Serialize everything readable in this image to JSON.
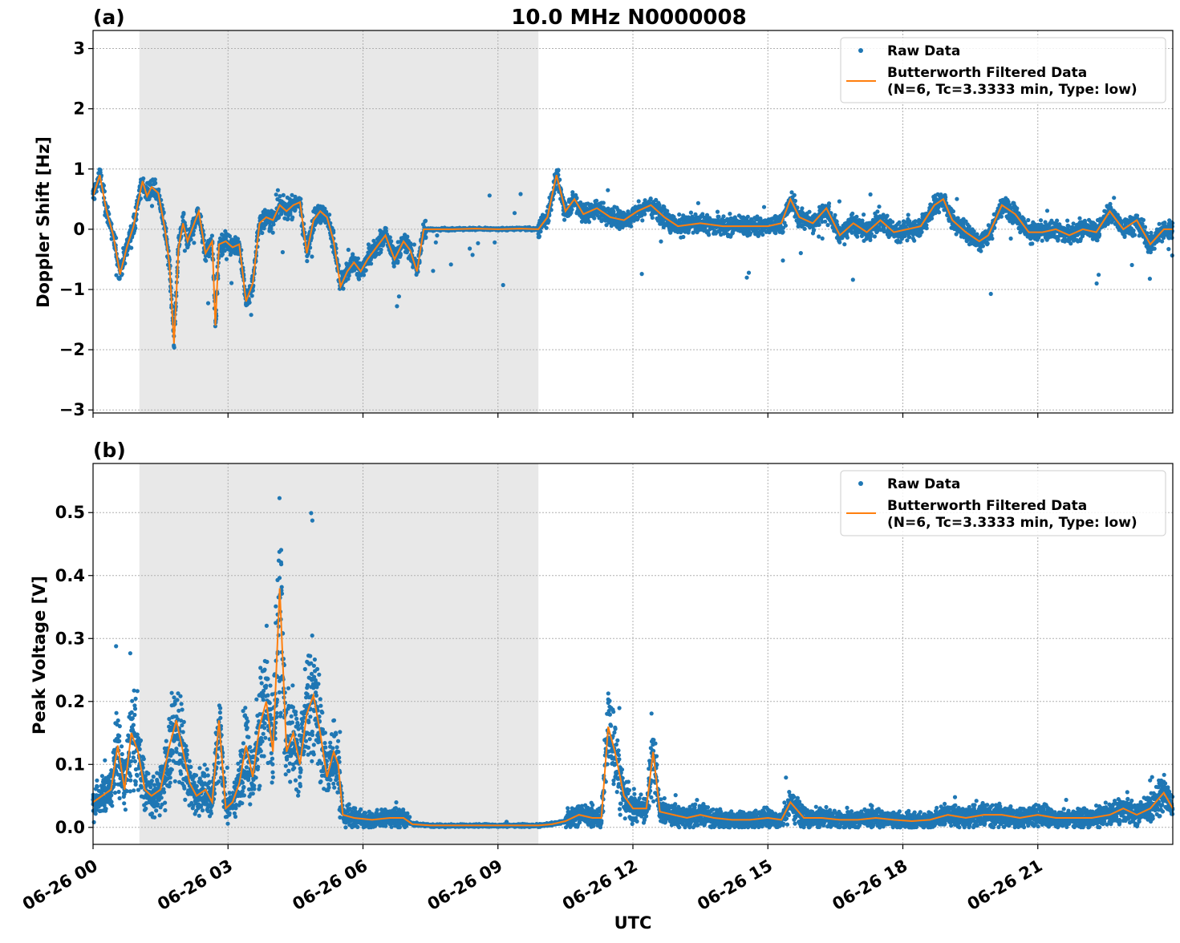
{
  "figure": {
    "title": "10.0 MHz N0000008",
    "xlabel": "UTC",
    "colors": {
      "raw": "#1f77b4",
      "filtered": "#ff7f0e",
      "shade": "#e8e8e8",
      "grid": "#b0b0b0"
    }
  },
  "chart_data": [
    {
      "type": "scatter",
      "panel_label": "(a)",
      "ylabel": "Doppler Shift [Hz]",
      "ylim": [
        -3.05,
        3.3
      ],
      "yticks": [
        -3,
        -2,
        -1,
        0,
        1,
        2,
        3
      ],
      "ytick_labels": [
        "−3",
        "−2",
        "−1",
        "0",
        "1",
        "2",
        "3"
      ],
      "xlim_hours": [
        0,
        24
      ],
      "shaded_region_hours": [
        1.03,
        9.9
      ],
      "grid": true,
      "legend_position": "top-right",
      "legend": [
        "Raw Data",
        "Butterworth Filtered Data",
        "(N=6, Tc=3.3333 min, Type: low)"
      ],
      "series": [
        {
          "name": "Butterworth Filtered Data (N=6, Tc=3.3333 min, Type: low)",
          "hours": [
            0,
            0.15,
            0.3,
            0.45,
            0.6,
            0.75,
            0.9,
            1.0,
            1.1,
            1.2,
            1.3,
            1.45,
            1.6,
            1.7,
            1.8,
            1.9,
            2.0,
            2.1,
            2.2,
            2.35,
            2.5,
            2.65,
            2.72,
            2.8,
            2.95,
            3.1,
            3.25,
            3.4,
            3.55,
            3.7,
            3.85,
            4.0,
            4.15,
            4.3,
            4.45,
            4.6,
            4.75,
            4.9,
            5.05,
            5.2,
            5.35,
            5.5,
            5.65,
            5.8,
            5.95,
            6.1,
            6.3,
            6.5,
            6.7,
            6.9,
            7.05,
            7.2,
            7.35,
            7.5,
            8.0,
            8.5,
            9.0,
            9.5,
            9.9,
            10.1,
            10.3,
            10.5,
            10.7,
            10.9,
            11.2,
            11.5,
            11.8,
            12.1,
            12.4,
            12.7,
            13.0,
            13.5,
            14.0,
            14.5,
            15.0,
            15.3,
            15.5,
            15.7,
            16.0,
            16.3,
            16.6,
            16.9,
            17.2,
            17.5,
            17.8,
            18.1,
            18.4,
            18.7,
            18.9,
            19.1,
            19.4,
            19.7,
            19.9,
            20.2,
            20.5,
            20.8,
            21.1,
            21.4,
            21.7,
            22.0,
            22.3,
            22.6,
            22.9,
            23.2,
            23.5,
            23.8,
            24.0
          ],
          "values": [
            0.55,
            0.9,
            0.3,
            -0.1,
            -0.75,
            -0.3,
            0.05,
            0.45,
            0.8,
            0.55,
            0.7,
            0.6,
            0.0,
            -0.6,
            -1.9,
            -0.3,
            0.1,
            -0.2,
            0.0,
            0.3,
            -0.4,
            -0.2,
            -1.6,
            -0.25,
            -0.2,
            -0.3,
            -0.25,
            -1.2,
            -0.9,
            0.1,
            0.2,
            0.15,
            0.4,
            0.3,
            0.4,
            0.45,
            -0.4,
            0.15,
            0.3,
            0.2,
            -0.2,
            -0.95,
            -0.7,
            -0.55,
            -0.7,
            -0.5,
            -0.3,
            -0.1,
            -0.5,
            -0.2,
            -0.35,
            -0.7,
            0.0,
            0.0,
            0.0,
            0.01,
            0.0,
            0.01,
            0.0,
            0.2,
            0.9,
            0.3,
            0.5,
            0.25,
            0.35,
            0.2,
            0.15,
            0.3,
            0.4,
            0.2,
            0.05,
            0.1,
            0.05,
            0.05,
            0.05,
            0.1,
            0.5,
            0.2,
            0.1,
            0.35,
            -0.1,
            0.1,
            -0.05,
            0.15,
            -0.05,
            0.0,
            0.05,
            0.4,
            0.5,
            0.15,
            -0.05,
            -0.2,
            -0.1,
            0.4,
            0.25,
            -0.05,
            -0.05,
            0.0,
            -0.1,
            0.0,
            -0.05,
            0.3,
            0.0,
            0.15,
            -0.25,
            0.0,
            0.0
          ]
        },
        {
          "name": "Raw Data",
          "style": "dense scatter around the filtered curve"
        }
      ]
    },
    {
      "type": "scatter",
      "panel_label": "(b)",
      "ylabel": "Peak Voltage [V]",
      "ylim": [
        -0.027,
        0.578
      ],
      "yticks": [
        0.0,
        0.1,
        0.2,
        0.3,
        0.4,
        0.5
      ],
      "ytick_labels": [
        "0.0",
        "0.1",
        "0.2",
        "0.3",
        "0.4",
        "0.5"
      ],
      "xlim_hours": [
        0,
        24
      ],
      "shaded_region_hours": [
        1.03,
        9.9
      ],
      "grid": true,
      "legend_position": "top-right",
      "legend": [
        "Raw Data",
        "Butterworth Filtered Data",
        "(N=6, Tc=3.3333 min, Type: low)"
      ],
      "xtick_hours": [
        0,
        3,
        6,
        9,
        12,
        15,
        18,
        21
      ],
      "xtick_labels": [
        "06-26 00",
        "06-26 03",
        "06-26 06",
        "06-26 09",
        "06-26 12",
        "06-26 15",
        "06-26 18",
        "06-26 21"
      ],
      "series": [
        {
          "name": "Butterworth Filtered Data (N=6, Tc=3.3333 min, Type: low)",
          "hours": [
            0,
            0.2,
            0.4,
            0.55,
            0.7,
            0.85,
            1.0,
            1.15,
            1.3,
            1.5,
            1.7,
            1.85,
            2.0,
            2.15,
            2.3,
            2.5,
            2.65,
            2.8,
            2.95,
            3.1,
            3.25,
            3.4,
            3.55,
            3.7,
            3.85,
            4.0,
            4.15,
            4.3,
            4.45,
            4.6,
            4.75,
            4.9,
            5.05,
            5.2,
            5.35,
            5.45,
            5.55,
            5.8,
            6.2,
            6.6,
            6.9,
            7.1,
            7.5,
            8.0,
            8.5,
            9.0,
            9.5,
            9.9,
            10.2,
            10.5,
            10.8,
            11.1,
            11.3,
            11.45,
            11.6,
            11.8,
            12.0,
            12.3,
            12.45,
            12.6,
            12.9,
            13.2,
            13.5,
            13.8,
            14.2,
            14.6,
            15.0,
            15.3,
            15.5,
            15.8,
            16.2,
            16.6,
            17.0,
            17.4,
            17.8,
            18.2,
            18.6,
            19.0,
            19.4,
            19.8,
            20.2,
            20.6,
            21.0,
            21.4,
            21.8,
            22.2,
            22.6,
            22.9,
            23.2,
            23.5,
            23.8,
            24.0
          ],
          "values": [
            0.04,
            0.05,
            0.06,
            0.13,
            0.06,
            0.15,
            0.12,
            0.06,
            0.05,
            0.06,
            0.13,
            0.17,
            0.12,
            0.07,
            0.05,
            0.06,
            0.04,
            0.17,
            0.03,
            0.04,
            0.07,
            0.13,
            0.08,
            0.16,
            0.2,
            0.12,
            0.38,
            0.12,
            0.15,
            0.1,
            0.18,
            0.21,
            0.15,
            0.08,
            0.12,
            0.1,
            0.02,
            0.015,
            0.012,
            0.015,
            0.015,
            0.005,
            0.003,
            0.003,
            0.003,
            0.003,
            0.003,
            0.003,
            0.005,
            0.01,
            0.02,
            0.015,
            0.015,
            0.16,
            0.12,
            0.05,
            0.03,
            0.03,
            0.12,
            0.025,
            0.02,
            0.015,
            0.02,
            0.015,
            0.012,
            0.012,
            0.015,
            0.012,
            0.04,
            0.015,
            0.015,
            0.012,
            0.012,
            0.015,
            0.012,
            0.01,
            0.012,
            0.02,
            0.015,
            0.02,
            0.02,
            0.015,
            0.02,
            0.015,
            0.015,
            0.015,
            0.02,
            0.03,
            0.02,
            0.03,
            0.055,
            0.03
          ]
        },
        {
          "name": "Raw Data",
          "style": "dense scatter around the filtered curve"
        }
      ]
    }
  ]
}
